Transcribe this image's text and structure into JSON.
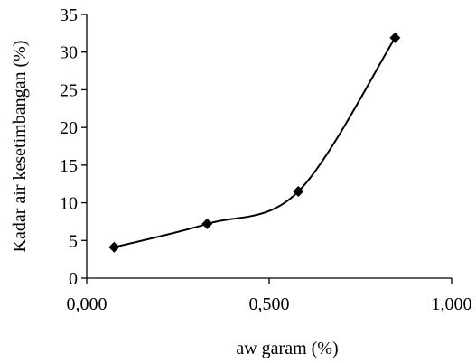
{
  "chart_data": {
    "type": "line",
    "title": "",
    "xlabel": "aw garam (%)",
    "ylabel": "Kadar air kesetimbangan (%)",
    "xlim": [
      0,
      1
    ],
    "ylim": [
      0,
      35
    ],
    "x_ticks": [
      0,
      0.5,
      1
    ],
    "x_tick_labels": [
      "0,000",
      "0,500",
      "1,000"
    ],
    "y_ticks": [
      0,
      5,
      10,
      15,
      20,
      25,
      30,
      35
    ],
    "y_tick_labels": [
      "0",
      "5",
      "10",
      "15",
      "20",
      "25",
      "30",
      "35"
    ],
    "grid": false,
    "legend": "none",
    "smooth": true,
    "marker": "diamond",
    "line_color": "#000000",
    "series": [
      {
        "x": [
          0.075,
          0.33,
          0.58,
          0.845
        ],
        "y": [
          4.1,
          7.2,
          11.5,
          31.9
        ]
      }
    ]
  }
}
